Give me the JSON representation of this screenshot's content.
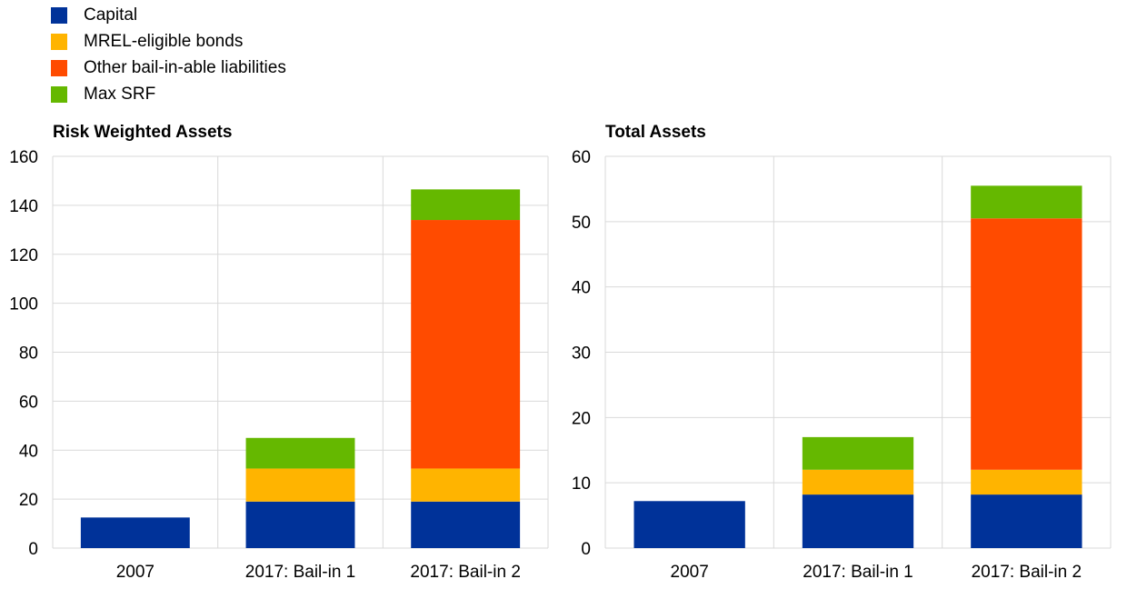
{
  "legend": [
    {
      "label": "Capital",
      "color": "#003299"
    },
    {
      "label": "MREL-eligible bonds",
      "color": "#FFB400"
    },
    {
      "label": "Other bail-in-able liabilities",
      "color": "#FF4B00"
    },
    {
      "label": "Max SRF",
      "color": "#65B800"
    }
  ],
  "chart_data": [
    {
      "type": "bar",
      "stacked": true,
      "title": "Risk Weighted Assets",
      "categories": [
        "2007",
        "2017: Bail-in 1",
        "2017: Bail-in 2"
      ],
      "ylim": [
        0,
        160
      ],
      "yticks": [
        0,
        20,
        40,
        60,
        80,
        100,
        120,
        140,
        160
      ],
      "grid": true,
      "series": [
        {
          "name": "Capital",
          "values": [
            12.5,
            19,
            19
          ]
        },
        {
          "name": "MREL-eligible bonds",
          "values": [
            0,
            13.5,
            13.5
          ]
        },
        {
          "name": "Other bail-in-able liabilities",
          "values": [
            0,
            0,
            101.5
          ]
        },
        {
          "name": "Max SRF",
          "values": [
            0,
            12.5,
            12.5
          ]
        }
      ]
    },
    {
      "type": "bar",
      "stacked": true,
      "title": "Total Assets",
      "categories": [
        "2007",
        "2017: Bail-in 1",
        "2017: Bail-in 2"
      ],
      "ylim": [
        0,
        60
      ],
      "yticks": [
        0,
        10,
        20,
        30,
        40,
        50,
        60
      ],
      "grid": true,
      "series": [
        {
          "name": "Capital",
          "values": [
            7.2,
            8.2,
            8.2
          ]
        },
        {
          "name": "MREL-eligible bonds",
          "values": [
            0,
            3.8,
            3.8
          ]
        },
        {
          "name": "Other bail-in-able liabilities",
          "values": [
            0,
            0,
            38.5
          ]
        },
        {
          "name": "Max SRF",
          "values": [
            0,
            5,
            5
          ]
        }
      ]
    }
  ]
}
